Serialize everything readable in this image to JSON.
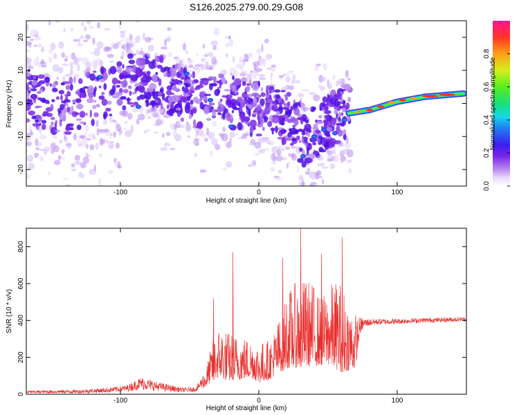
{
  "title": "S126.2025.279.00.29.G08",
  "chart_data": [
    {
      "type": "heatmap",
      "xlabel": "Height of straight line (km)",
      "ylabel": "Frequency (Hz)",
      "xlim": [
        -168,
        150
      ],
      "ylim": [
        -25,
        25
      ],
      "xticks": [
        -100,
        0,
        100
      ],
      "xtick_labels": [
        "-100",
        "0",
        "100"
      ],
      "yticks": [
        -20,
        -10,
        0,
        10,
        20
      ],
      "ytick_labels": [
        "-20",
        "-10",
        "0",
        "10",
        "20"
      ],
      "colorbar": {
        "label": "Normalized spectral amplitude",
        "range": [
          0.0,
          1.0
        ],
        "ticks": [
          0.0,
          0.2,
          0.4,
          0.6,
          0.8
        ],
        "tick_labels": [
          "0.0",
          "0.2",
          "0.4",
          "0.6",
          "0.8"
        ]
      },
      "ridge": {
        "description_points_x": [
          65,
          80,
          100,
          120,
          148
        ],
        "description_points_y": [
          -3,
          -2,
          0.5,
          2,
          3
        ]
      }
    },
    {
      "type": "line",
      "xlabel": "Height of straight line (km)",
      "ylabel": "SNR (10 * v/v)",
      "xlim": [
        -168,
        150
      ],
      "ylim": [
        0,
        900
      ],
      "xticks": [
        -100,
        0,
        100
      ],
      "xtick_labels": [
        "-100",
        "0",
        "100"
      ],
      "yticks": [
        0,
        200,
        400,
        600,
        800
      ],
      "ytick_labels": [
        "0",
        "200",
        "400",
        "600",
        "800"
      ],
      "color": "#e8312f",
      "envelope_x": [
        -168,
        -130,
        -110,
        -95,
        -85,
        -75,
        -55,
        -45,
        -38,
        -33,
        -28,
        -22,
        -18,
        -12,
        -5,
        0,
        8,
        15,
        20,
        25,
        30,
        35,
        40,
        45,
        50,
        55,
        60,
        65,
        70,
        73,
        76,
        80,
        85,
        90,
        100,
        110,
        120,
        130,
        140,
        150
      ],
      "envelope_lo": [
        5,
        5,
        8,
        15,
        25,
        18,
        10,
        15,
        40,
        80,
        90,
        70,
        80,
        80,
        90,
        60,
        80,
        120,
        140,
        140,
        150,
        150,
        150,
        160,
        160,
        140,
        120,
        130,
        140,
        330,
        360,
        370,
        375,
        378,
        380,
        385,
        388,
        390,
        392,
        395
      ],
      "envelope_hi": [
        20,
        25,
        35,
        50,
        95,
        70,
        35,
        40,
        150,
        300,
        380,
        340,
        330,
        320,
        300,
        280,
        300,
        420,
        550,
        600,
        620,
        630,
        600,
        520,
        580,
        620,
        610,
        500,
        440,
        420,
        410,
        410,
        410,
        408,
        410,
        412,
        414,
        415,
        418,
        420
      ],
      "peaks_x": [
        -33,
        -19,
        17,
        30,
        45,
        60
      ],
      "peaks_y": [
        520,
        770,
        740,
        900,
        760,
        850
      ]
    }
  ]
}
